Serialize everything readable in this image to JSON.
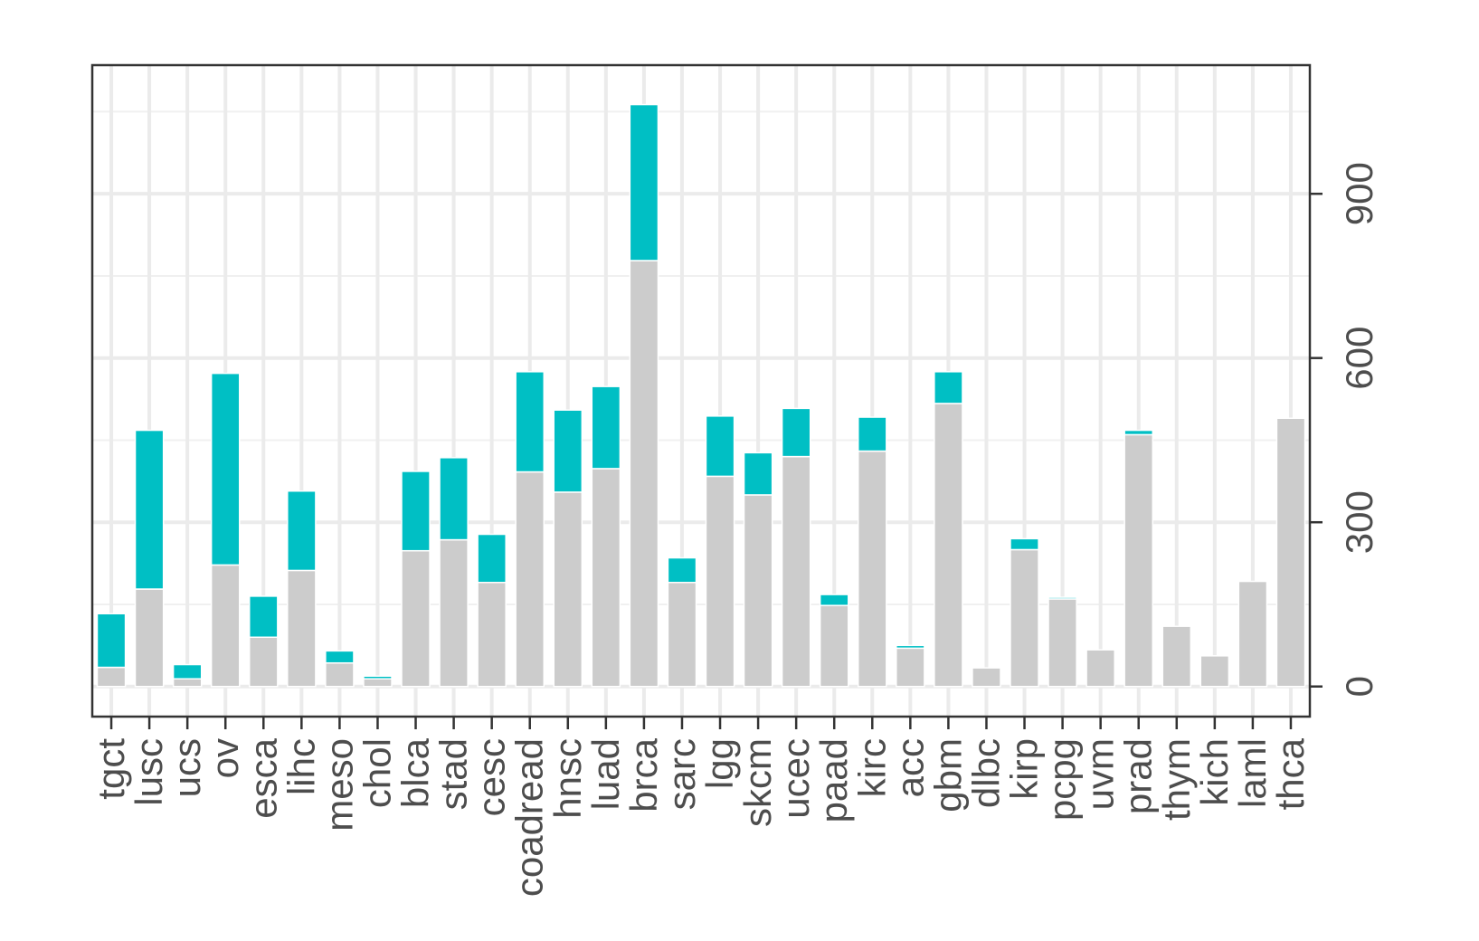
{
  "chart_data": {
    "type": "bar",
    "stacked": true,
    "orientation": "vertical",
    "y_axis_position": "right",
    "categories": [
      "tgct",
      "lusc",
      "ucs",
      "ov",
      "esca",
      "lihc",
      "meso",
      "chol",
      "blca",
      "stad",
      "cesc",
      "coadread",
      "hnsc",
      "luad",
      "brca",
      "sarc",
      "lgg",
      "skcm",
      "ucec",
      "paad",
      "kirc",
      "acc",
      "gbm",
      "dlbc",
      "kirp",
      "pcpg",
      "uvm",
      "prad",
      "thym",
      "kich",
      "laml",
      "thca"
    ],
    "series": [
      {
        "color": "#cccccc",
        "values": [
          35,
          178,
          14,
          222,
          90,
          212,
          43,
          14,
          248,
          268,
          190,
          392,
          355,
          398,
          778,
          190,
          384,
          350,
          420,
          148,
          430,
          70,
          517,
          34,
          250,
          160,
          67,
          460,
          110,
          56,
          192,
          490
        ]
      },
      {
        "color": "#00bfc4",
        "values": [
          98,
          290,
          26,
          350,
          75,
          145,
          22,
          5,
          145,
          150,
          88,
          183,
          150,
          150,
          285,
          45,
          110,
          77,
          88,
          20,
          62,
          5,
          58,
          0,
          20,
          3,
          0,
          8,
          0,
          0,
          0,
          0
        ]
      }
    ],
    "yticks": [
      0,
      300,
      600,
      900
    ],
    "ylim": [
      -55,
      1135
    ],
    "grid": true,
    "legend": "none",
    "title": "",
    "xlabel": "",
    "ylabel": ""
  }
}
